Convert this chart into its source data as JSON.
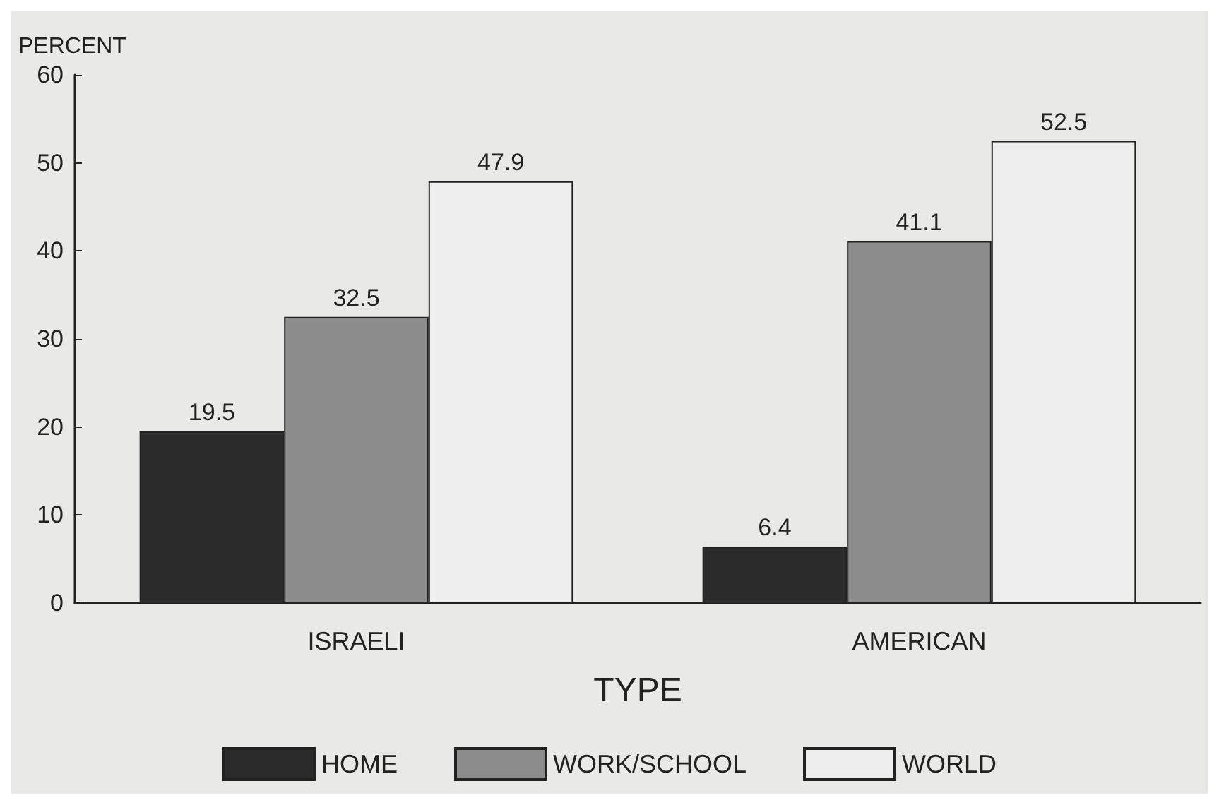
{
  "chart_data": {
    "type": "bar",
    "xlabel": "TYPE",
    "ylabel": "PERCENT",
    "categories": [
      "ISRAELI",
      "AMERICAN"
    ],
    "series": [
      {
        "name": "HOME",
        "color": "#2b2b2b",
        "values": [
          19.5,
          6.4
        ]
      },
      {
        "name": "WORK/SCHOOL",
        "color": "#8c8c8c",
        "values": [
          32.5,
          41.1
        ]
      },
      {
        "name": "WORLD",
        "color": "#eeeeee",
        "values": [
          47.9,
          52.5
        ]
      }
    ],
    "ylim": [
      0,
      60
    ],
    "yticks": [
      0,
      10,
      20,
      30,
      40,
      50,
      60
    ],
    "grid": false,
    "legend": "bottom",
    "data_labels": true
  }
}
